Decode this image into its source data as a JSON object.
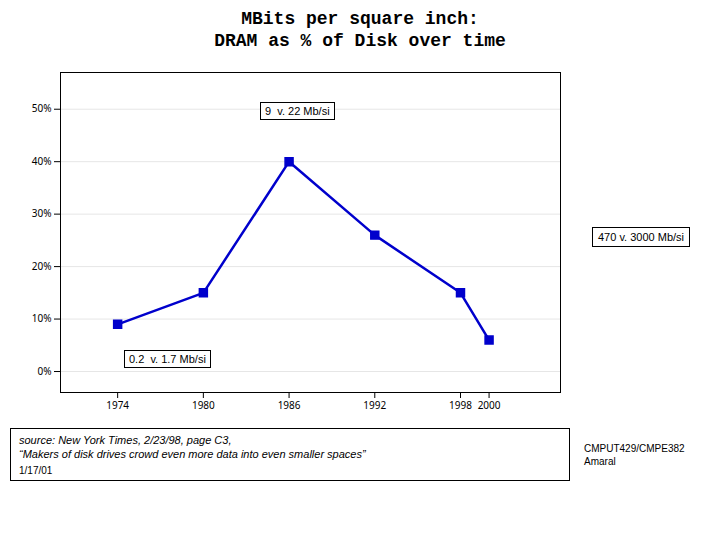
{
  "chart_data": {
    "type": "line",
    "title": "MBits per square inch:",
    "subtitle": "DRAM as % of Disk over time",
    "x": [
      1974,
      1980,
      1986,
      1992,
      1998,
      2000
    ],
    "values": [
      0.09,
      0.15,
      0.4,
      0.26,
      0.15,
      0.06
    ],
    "color": "#0000cc",
    "marker": "square",
    "xlim": [
      1970,
      2005
    ],
    "xticks": [
      1974,
      1980,
      1986,
      1992,
      1998,
      2000
    ],
    "ylim": [
      -0.04,
      0.57
    ],
    "yticks": [
      {
        "value": 0.0,
        "label": "0%"
      },
      {
        "value": 0.1,
        "label": "10%"
      },
      {
        "value": 0.2,
        "label": "20%"
      },
      {
        "value": 0.3,
        "label": "30%"
      },
      {
        "value": 0.4,
        "label": "40%"
      },
      {
        "value": 0.5,
        "label": "50%"
      }
    ],
    "grid": true,
    "annotations": [
      "9  v. 22 Mb/si",
      "0.2  v. 1.7 Mb/si",
      "470 v. 3000 Mb/si"
    ],
    "caption": "source: New York Times, 2/23/98, page C3,\n“Makers of disk drives crowd even more data into even smaller spaces”",
    "footer": [
      "1/17/01",
      "CMPUT429/CMPE382\nAmaral"
    ]
  }
}
